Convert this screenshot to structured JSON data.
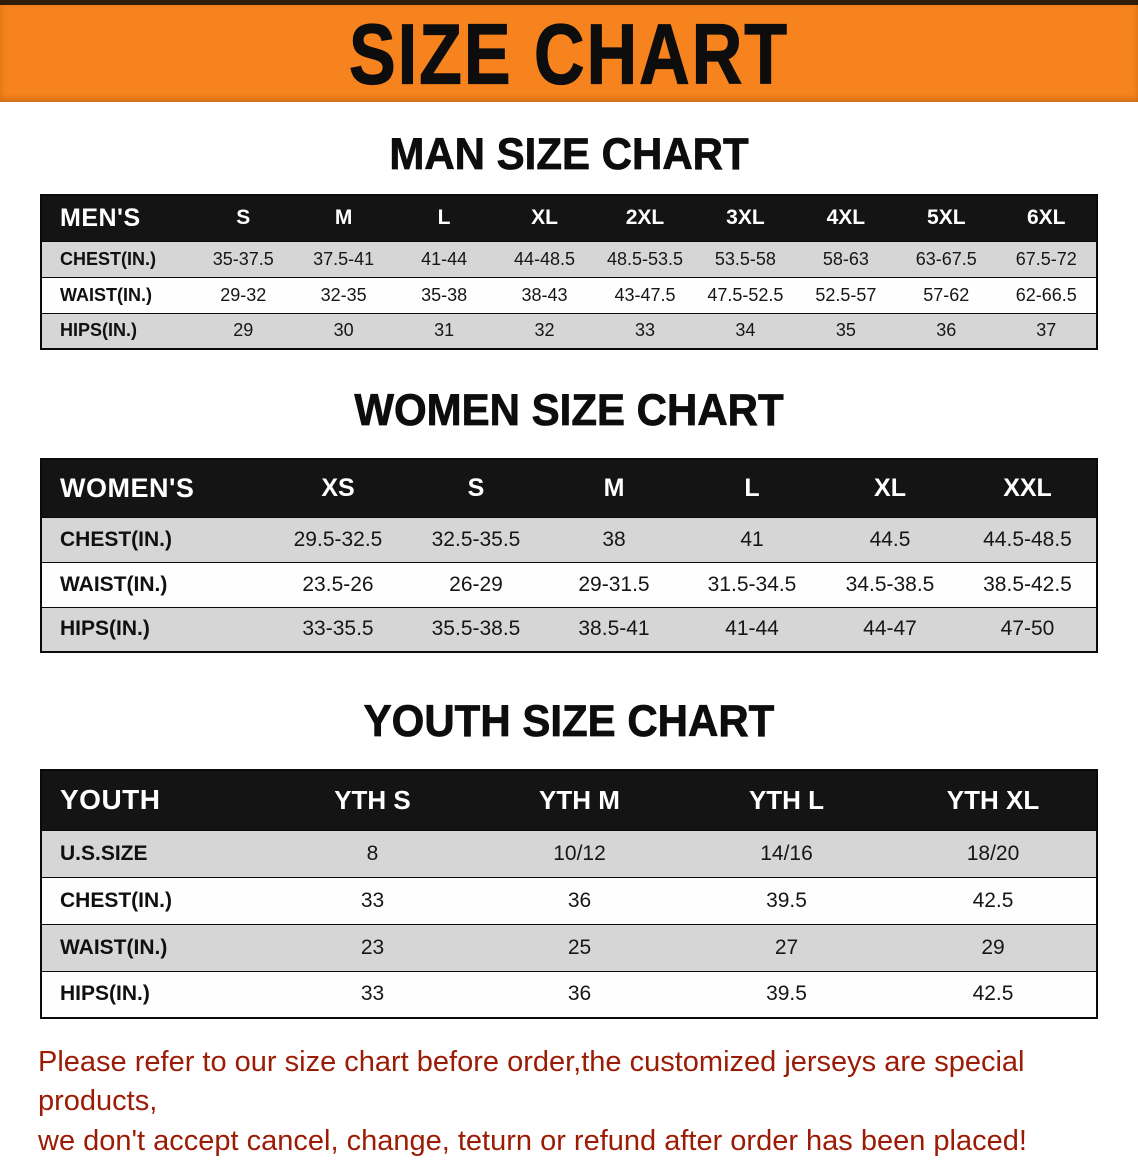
{
  "banner": {
    "title": "SIZE CHART"
  },
  "men": {
    "heading": "MAN SIZE CHART",
    "table": {
      "header": [
        "MEN'S",
        "S",
        "M",
        "L",
        "XL",
        "2XL",
        "3XL",
        "4XL",
        "5XL",
        "6XL"
      ],
      "rows": [
        [
          "CHEST(IN.)",
          "35-37.5",
          "37.5-41",
          "41-44",
          "44-48.5",
          "48.5-53.5",
          "53.5-58",
          "58-63",
          "63-67.5",
          "67.5-72"
        ],
        [
          "WAIST(IN.)",
          "29-32",
          "32-35",
          "35-38",
          "38-43",
          "43-47.5",
          "47.5-52.5",
          "52.5-57",
          "57-62",
          "62-66.5"
        ],
        [
          "HIPS(IN.)",
          "29",
          "30",
          "31",
          "32",
          "33",
          "34",
          "35",
          "36",
          "37"
        ]
      ]
    }
  },
  "women": {
    "heading": "WOMEN SIZE CHART",
    "table": {
      "header": [
        "WOMEN'S",
        "XS",
        "S",
        "M",
        "L",
        "XL",
        "XXL"
      ],
      "rows": [
        [
          "CHEST(IN.)",
          "29.5-32.5",
          "32.5-35.5",
          "38",
          "41",
          "44.5",
          "44.5-48.5"
        ],
        [
          "WAIST(IN.)",
          "23.5-26",
          "26-29",
          "29-31.5",
          "31.5-34.5",
          "34.5-38.5",
          "38.5-42.5"
        ],
        [
          "HIPS(IN.)",
          "33-35.5",
          "35.5-38.5",
          "38.5-41",
          "41-44",
          "44-47",
          "47-50"
        ]
      ]
    }
  },
  "youth": {
    "heading": "YOUTH SIZE CHART",
    "table": {
      "header": [
        "YOUTH",
        "YTH S",
        "YTH M",
        "YTH L",
        "YTH XL"
      ],
      "rows": [
        [
          "U.S.SIZE",
          "8",
          "10/12",
          "14/16",
          "18/20"
        ],
        [
          "CHEST(IN.)",
          "33",
          "36",
          "39.5",
          "42.5"
        ],
        [
          "WAIST(IN.)",
          "23",
          "25",
          "27",
          "29"
        ],
        [
          "HIPS(IN.)",
          "33",
          "36",
          "39.5",
          "42.5"
        ]
      ]
    }
  },
  "disclaimer": {
    "line1": "Please refer to our size chart before order,the customized jerseys are special products,",
    "line2": "we don't accept cancel, change, teturn or refund after order has been placed!"
  },
  "colors": {
    "banner_bg": "#f6831d",
    "table_header_bg": "#141414",
    "row_alt_bg": "#d6d6d6",
    "disclaimer_color": "#9c1b04",
    "text_color": "#0d0d0d"
  }
}
